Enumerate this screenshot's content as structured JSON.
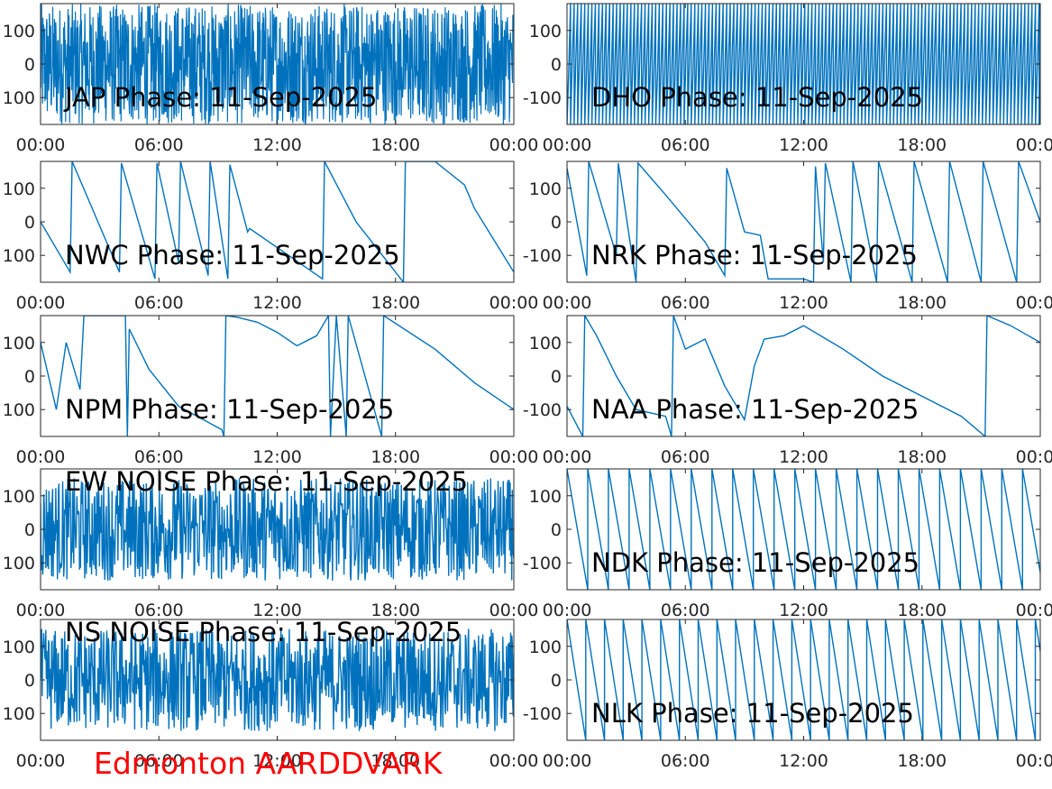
{
  "footer": {
    "text": "Edmonton AARDDVARK",
    "color": "#ff0000"
  },
  "line_color": "#0072bd",
  "chart_data": [
    {
      "type": "line",
      "title": "JAP Phase: 11-Sep-2025",
      "xticks": [
        "00:00",
        "06:00",
        "12:00",
        "18:00",
        "00:00"
      ],
      "yticks": [
        "100",
        "0",
        "100"
      ],
      "ylim": [
        -180,
        180
      ],
      "style": "dense-noise"
    },
    {
      "type": "line",
      "title": "DHO Phase: 11-Sep-2025",
      "xticks": [
        "00:00",
        "06:00",
        "12:00",
        "18:00",
        "00:00"
      ],
      "yticks": [
        "100",
        "0",
        "-100"
      ],
      "ylim": [
        -180,
        180
      ],
      "style": "fast-wrap"
    },
    {
      "type": "line",
      "title": "NWC Phase: 11-Sep-2025",
      "xticks": [
        "00:00",
        "06:00",
        "12:00",
        "18:00",
        "00:00"
      ],
      "yticks": [
        "100",
        "0",
        "100"
      ],
      "ylim": [
        -180,
        180
      ],
      "style": "wrap",
      "points": [
        [
          0,
          0
        ],
        [
          1.5,
          -150
        ],
        [
          1.6,
          180
        ],
        [
          4,
          -150
        ],
        [
          4.1,
          175
        ],
        [
          5.8,
          -170
        ],
        [
          5.9,
          175
        ],
        [
          7,
          -120
        ],
        [
          7.1,
          180
        ],
        [
          8.5,
          -160
        ],
        [
          8.6,
          180
        ],
        [
          9.5,
          -170
        ],
        [
          9.6,
          170
        ],
        [
          10.5,
          -30
        ],
        [
          10.6,
          -20
        ],
        [
          14.3,
          -170
        ],
        [
          14.4,
          180
        ],
        [
          16,
          0
        ],
        [
          18,
          -150
        ],
        [
          18.4,
          -180
        ],
        [
          18.5,
          180
        ],
        [
          20,
          180
        ],
        [
          21.5,
          110
        ],
        [
          22,
          40
        ],
        [
          24,
          -150
        ]
      ]
    },
    {
      "type": "line",
      "title": "NRK Phase: 11-Sep-2025",
      "xticks": [
        "00:00",
        "06:00",
        "12:00",
        "18:00",
        "00:00"
      ],
      "yticks": [
        "100",
        "0",
        "-100"
      ],
      "ylim": [
        -180,
        180
      ],
      "style": "wrap",
      "points": [
        [
          0,
          160
        ],
        [
          1,
          -160
        ],
        [
          1.1,
          180
        ],
        [
          2.5,
          -100
        ],
        [
          2.6,
          175
        ],
        [
          3.5,
          -180
        ],
        [
          3.6,
          175
        ],
        [
          5,
          80
        ],
        [
          6,
          10
        ],
        [
          7,
          -60
        ],
        [
          8,
          -160
        ],
        [
          8.1,
          160
        ],
        [
          9,
          -30
        ],
        [
          9.8,
          -40
        ],
        [
          10.2,
          -170
        ],
        [
          12,
          -170
        ],
        [
          12.5,
          -180
        ],
        [
          12.6,
          165
        ],
        [
          13,
          -120
        ],
        [
          13.1,
          175
        ],
        [
          14.4,
          -180
        ],
        [
          14.5,
          180
        ],
        [
          15.7,
          -180
        ],
        [
          15.8,
          180
        ],
        [
          17.5,
          -180
        ],
        [
          17.6,
          180
        ],
        [
          19.3,
          -180
        ],
        [
          19.4,
          180
        ],
        [
          21,
          -180
        ],
        [
          21.1,
          180
        ],
        [
          22.8,
          -180
        ],
        [
          22.9,
          180
        ],
        [
          24,
          0
        ]
      ]
    },
    {
      "type": "line",
      "title": "NPM Phase: 11-Sep-2025",
      "xticks": [
        "00:00",
        "06:00",
        "12:00",
        "18:00",
        "00:00"
      ],
      "yticks": [
        "100",
        "0",
        "100"
      ],
      "ylim": [
        -180,
        180
      ],
      "style": "wrap",
      "points": [
        [
          0,
          100
        ],
        [
          0.8,
          -100
        ],
        [
          1.3,
          100
        ],
        [
          2,
          -40
        ],
        [
          2.2,
          180
        ],
        [
          4.3,
          180
        ],
        [
          4.4,
          -180
        ],
        [
          4.5,
          140
        ],
        [
          5.5,
          20
        ],
        [
          7,
          -90
        ],
        [
          9.2,
          -160
        ],
        [
          9.3,
          -180
        ],
        [
          9.4,
          180
        ],
        [
          10,
          175
        ],
        [
          11,
          160
        ],
        [
          12,
          130
        ],
        [
          13,
          90
        ],
        [
          14,
          120
        ],
        [
          14.6,
          180
        ],
        [
          14.7,
          -180
        ],
        [
          15,
          180
        ],
        [
          15.5,
          -180
        ],
        [
          15.6,
          180
        ],
        [
          17.3,
          -180
        ],
        [
          17.4,
          180
        ],
        [
          20,
          80
        ],
        [
          22,
          -20
        ],
        [
          24,
          -100
        ]
      ]
    },
    {
      "type": "line",
      "title": "NAA Phase: 11-Sep-2025",
      "xticks": [
        "00:00",
        "06:00",
        "12:00",
        "18:00",
        "00:00"
      ],
      "yticks": [
        "100",
        "0",
        "-100"
      ],
      "ylim": [
        -180,
        180
      ],
      "style": "wrap",
      "points": [
        [
          0,
          -90
        ],
        [
          0.8,
          -180
        ],
        [
          0.9,
          180
        ],
        [
          1.5,
          120
        ],
        [
          2.5,
          0
        ],
        [
          3.5,
          -100
        ],
        [
          5,
          -120
        ],
        [
          5.3,
          -180
        ],
        [
          5.4,
          180
        ],
        [
          6,
          80
        ],
        [
          7,
          110
        ],
        [
          8,
          -30
        ],
        [
          9,
          -130
        ],
        [
          9.5,
          30
        ],
        [
          10,
          110
        ],
        [
          11,
          120
        ],
        [
          12,
          150
        ],
        [
          14,
          80
        ],
        [
          16,
          0
        ],
        [
          20,
          -120
        ],
        [
          21.2,
          -180
        ],
        [
          21.3,
          180
        ],
        [
          22.5,
          150
        ],
        [
          24,
          100
        ]
      ]
    },
    {
      "type": "line",
      "title": "EW NOISE Phase: 11-Sep-2025",
      "xticks": [
        "00:00",
        "06:00",
        "12:00",
        "18:00",
        "00:00"
      ],
      "yticks": [
        "100",
        "0",
        "100"
      ],
      "ylim": [
        -180,
        180
      ],
      "style": "noise"
    },
    {
      "type": "line",
      "title": "NDK Phase: 11-Sep-2025",
      "xticks": [
        "00:00",
        "06:00",
        "12:00",
        "18:00",
        "00:00"
      ],
      "yticks": [
        "100",
        "0",
        "-100"
      ],
      "ylim": [
        -180,
        180
      ],
      "style": "sawtooth",
      "period_h": 1.05
    },
    {
      "type": "line",
      "title": "NS NOISE Phase: 11-Sep-2025",
      "xticks": [
        "00:00",
        "06:00",
        "12:00",
        "18:00",
        "00:00"
      ],
      "yticks": [
        "100",
        "0",
        "100"
      ],
      "ylim": [
        -180,
        180
      ],
      "style": "noise"
    },
    {
      "type": "line",
      "title": "NLK Phase: 11-Sep-2025",
      "xticks": [
        "00:00",
        "06:00",
        "12:00",
        "18:00",
        "00:00"
      ],
      "yticks": [
        "100",
        "0",
        "-100"
      ],
      "ylim": [
        -180,
        180
      ],
      "style": "sawtooth",
      "period_h": 0.95
    }
  ]
}
